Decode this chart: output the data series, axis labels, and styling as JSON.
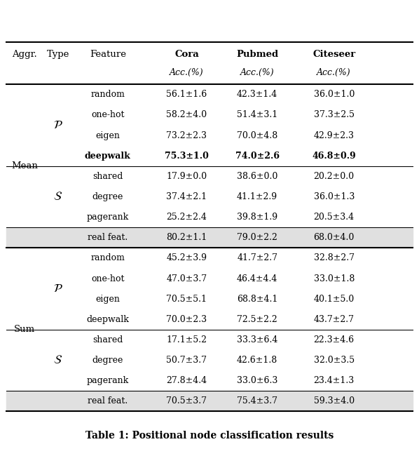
{
  "title": "Table 1: Positional node classification results",
  "rows": [
    {
      "aggr": "Mean",
      "type": "P",
      "feature": "random",
      "cora": "56.1±1.6",
      "pubmed": "42.3±1.4",
      "citeseer": "36.0±1.0",
      "bold": false,
      "shaded": false
    },
    {
      "aggr": "",
      "type": "P",
      "feature": "one-hot",
      "cora": "58.2±4.0",
      "pubmed": "51.4±3.1",
      "citeseer": "37.3±2.5",
      "bold": false,
      "shaded": false
    },
    {
      "aggr": "",
      "type": "P",
      "feature": "eigen",
      "cora": "73.2±2.3",
      "pubmed": "70.0±4.8",
      "citeseer": "42.9±2.3",
      "bold": false,
      "shaded": false
    },
    {
      "aggr": "",
      "type": "P",
      "feature": "deepwalk",
      "cora": "75.3±1.0",
      "pubmed": "74.0±2.6",
      "citeseer": "46.8±0.9",
      "bold": true,
      "shaded": false
    },
    {
      "aggr": "",
      "type": "S",
      "feature": "shared",
      "cora": "17.9±0.0",
      "pubmed": "38.6±0.0",
      "citeseer": "20.2±0.0",
      "bold": false,
      "shaded": false
    },
    {
      "aggr": "",
      "type": "S",
      "feature": "degree",
      "cora": "37.4±2.1",
      "pubmed": "41.1±2.9",
      "citeseer": "36.0±1.3",
      "bold": false,
      "shaded": false
    },
    {
      "aggr": "",
      "type": "S",
      "feature": "pagerank",
      "cora": "25.2±2.4",
      "pubmed": "39.8±1.9",
      "citeseer": "20.5±3.4",
      "bold": false,
      "shaded": false
    },
    {
      "aggr": "",
      "type": "",
      "feature": "real feat.",
      "cora": "80.2±1.1",
      "pubmed": "79.0±2.2",
      "citeseer": "68.0±4.0",
      "bold": false,
      "shaded": true
    },
    {
      "aggr": "Sum",
      "type": "P",
      "feature": "random",
      "cora": "45.2±3.9",
      "pubmed": "41.7±2.7",
      "citeseer": "32.8±2.7",
      "bold": false,
      "shaded": false
    },
    {
      "aggr": "",
      "type": "P",
      "feature": "one-hot",
      "cora": "47.0±3.7",
      "pubmed": "46.4±4.4",
      "citeseer": "33.0±1.8",
      "bold": false,
      "shaded": false
    },
    {
      "aggr": "",
      "type": "P",
      "feature": "eigen",
      "cora": "70.5±5.1",
      "pubmed": "68.8±4.1",
      "citeseer": "40.1±5.0",
      "bold": false,
      "shaded": false
    },
    {
      "aggr": "",
      "type": "P",
      "feature": "deepwalk",
      "cora": "70.0±2.3",
      "pubmed": "72.5±2.2",
      "citeseer": "43.7±2.7",
      "bold": false,
      "shaded": false
    },
    {
      "aggr": "",
      "type": "S",
      "feature": "shared",
      "cora": "17.1±5.2",
      "pubmed": "33.3±6.4",
      "citeseer": "22.3±4.6",
      "bold": false,
      "shaded": false
    },
    {
      "aggr": "",
      "type": "S",
      "feature": "degree",
      "cora": "50.7±3.7",
      "pubmed": "42.6±1.8",
      "citeseer": "32.0±3.5",
      "bold": false,
      "shaded": false
    },
    {
      "aggr": "",
      "type": "S",
      "feature": "pagerank",
      "cora": "27.8±4.4",
      "pubmed": "33.0±6.3",
      "citeseer": "23.4±1.3",
      "bold": false,
      "shaded": false
    },
    {
      "aggr": "",
      "type": "",
      "feature": "real feat.",
      "cora": "70.5±3.7",
      "pubmed": "75.4±3.7",
      "citeseer": "59.3±4.0",
      "bold": false,
      "shaded": true
    }
  ],
  "shaded_color": "#e0e0e0",
  "bg_color": "white",
  "thick_lw": 1.5,
  "thin_lw": 0.75,
  "figure_width": 5.98,
  "figure_height": 6.4
}
